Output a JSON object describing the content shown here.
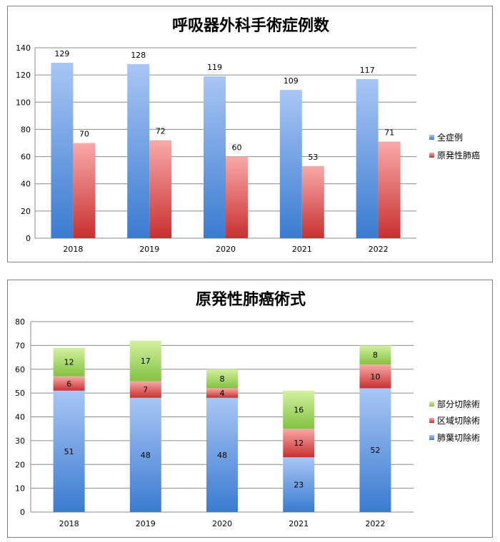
{
  "chart_data": [
    {
      "type": "bar",
      "title": "呼吸器外科手術症例数",
      "categories": [
        "2018",
        "2019",
        "2020",
        "2021",
        "2022"
      ],
      "series": [
        {
          "name": "全症例",
          "values": [
            129,
            128,
            119,
            109,
            117
          ]
        },
        {
          "name": "原発性肺癌",
          "values": [
            70,
            72,
            60,
            53,
            71
          ]
        }
      ],
      "ylim": [
        0,
        140
      ],
      "yticks": [
        0,
        20,
        40,
        60,
        80,
        100,
        120,
        140
      ],
      "grid": true,
      "legend": "right",
      "colors": {
        "全症例": {
          "top": "#a9c6f5",
          "bottom": "#3a7bd0"
        },
        "原発性肺癌": {
          "top": "#f9a9a9",
          "bottom": "#c93030"
        }
      }
    },
    {
      "type": "bar",
      "stacked": true,
      "title": "原発性肺癌術式",
      "categories": [
        "2018",
        "2019",
        "2020",
        "2021",
        "2022"
      ],
      "series": [
        {
          "name": "肺葉切除術",
          "values": [
            51,
            48,
            48,
            23,
            52
          ]
        },
        {
          "name": "区域切除術",
          "values": [
            6,
            7,
            4,
            12,
            10
          ]
        },
        {
          "name": "部分切除術",
          "values": [
            12,
            17,
            8,
            16,
            8
          ]
        }
      ],
      "ylim": [
        0,
        80
      ],
      "yticks": [
        0,
        10,
        20,
        30,
        40,
        50,
        60,
        70,
        80
      ],
      "grid": true,
      "legend": "right",
      "colors": {
        "肺葉切除術": {
          "top": "#a9c6f5",
          "bottom": "#3a7bd0"
        },
        "区域切除術": {
          "top": "#f9a9a9",
          "bottom": "#c93030"
        },
        "部分切除術": {
          "top": "#d4f0a0",
          "bottom": "#82c341"
        }
      }
    }
  ]
}
